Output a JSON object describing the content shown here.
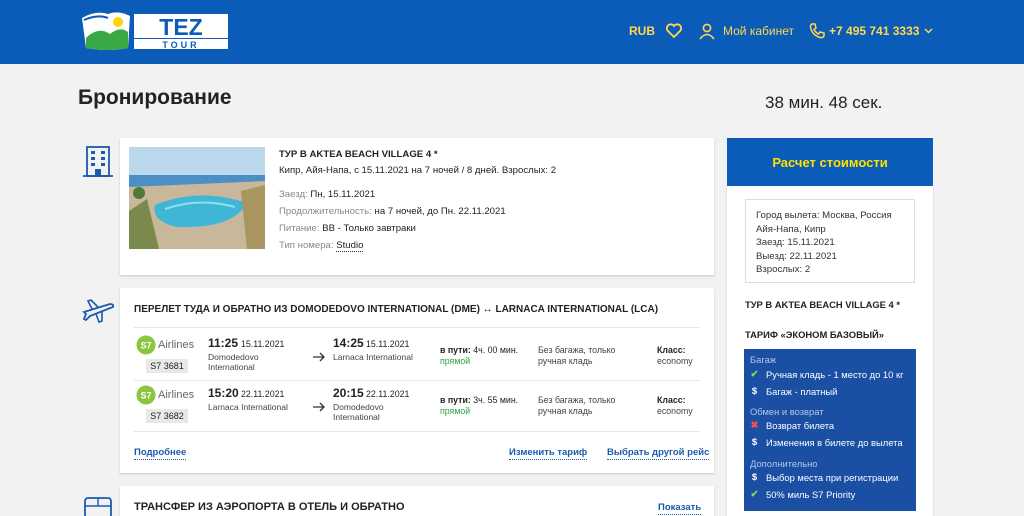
{
  "header": {
    "currency": "RUB",
    "cabinet": "Мой кабинет",
    "phone": "+7 495 741 3333"
  },
  "page": {
    "title": "Бронирование",
    "timer": "38 мин. 48 сек."
  },
  "hotel": {
    "name": "ТУР В AKTEA BEACH VILLAGE 4 *",
    "summary": "Кипр, Айя-Напа, с 15.11.2021 на 7 ночей / 8 дней. Взрослых: 2",
    "checkin_label": "Заезд:",
    "checkin": "Пн, 15.11.2021",
    "duration_label": "Продолжительность:",
    "duration": "на 7 ночей, до Пн. 22.11.2021",
    "meal_label": "Питание:",
    "meal": "BB - Только завтраки",
    "room_label": "Тип номера:",
    "room": "Studio"
  },
  "flight": {
    "title": "ПЕРЕЛЕТ ТУДА И ОБРАТНО ИЗ DOMODEDOVO INTERNATIONAL (DME) ↔ LARNACA INTERNATIONAL (LCA)",
    "segments": [
      {
        "airline": "Airlines",
        "flight_no": "S7 3681",
        "dep_time": "11:25",
        "dep_date": "15.11.2021",
        "dep_airport": "Domodedovo International",
        "arr_time": "14:25",
        "arr_date": "15.11.2021",
        "arr_airport": "Larnaca International",
        "duration_label": "в пути:",
        "duration": "4ч. 00 мин.",
        "direct": "прямой",
        "baggage": "Без багажа, только ручная кладь",
        "class_label": "Класс:",
        "class": "economy"
      },
      {
        "airline": "Airlines",
        "flight_no": "S7 3682",
        "dep_time": "15:20",
        "dep_date": "22.11.2021",
        "dep_airport": "Larnaca International",
        "arr_time": "20:15",
        "arr_date": "22.11.2021",
        "arr_airport": "Domodedovo International",
        "duration_label": "в пути:",
        "duration": "3ч. 55 мин.",
        "direct": "прямой",
        "baggage": "Без багажа, только ручная кладь",
        "class_label": "Класс:",
        "class": "economy"
      }
    ],
    "details": "Подробнее",
    "change_tariff": "Изменить тариф",
    "other_flight": "Выбрать другой рейс"
  },
  "transfer": {
    "title": "ТРАНСФЕР ИЗ АЭРОПОРТА В ОТЕЛЬ И ОБРАТНО",
    "show": "Показать"
  },
  "sidebar": {
    "calc_button": "Расчет стоимости",
    "summary": [
      "Город вылета: Москва, Россия",
      "Айя-Напа, Кипр",
      "Заезд: 15.11.2021",
      "Выезд: 22.11.2021",
      "Взрослых: 2"
    ],
    "tour": "ТУР В AKTEA BEACH VILLAGE 4 *",
    "tariff": "ТАРИФ «ЭКОНОМ БАЗОВЫЙ»",
    "sections": {
      "baggage": "Багаж",
      "exchange": "Обмен и возврат",
      "extra": "Дополнительно"
    },
    "features": {
      "hand": "Ручная кладь - 1 место до 10 кг",
      "bag": "Багаж - платный",
      "refund": "Возврат билета",
      "change": "Изменения в билете до вылета",
      "seat": "Выбор места при регистрации",
      "miles": "50% миль S7 Priority"
    }
  },
  "colors": {
    "brand": "#0b5cb8",
    "accent": "#ffd84d",
    "s7": "#8cc63f",
    "blue_box": "#1a4fa3"
  }
}
